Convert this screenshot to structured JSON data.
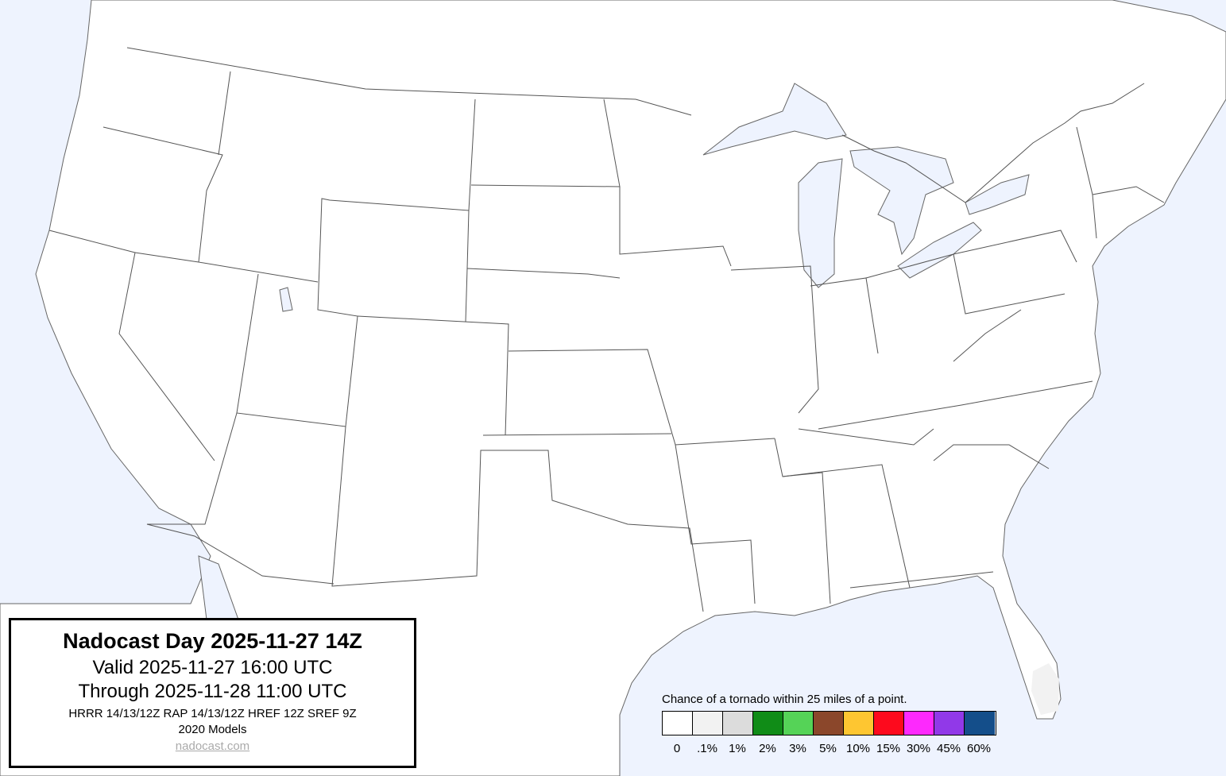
{
  "info": {
    "title": "Nadocast Day 2025-11-27 14Z",
    "valid": "Valid 2025-11-27 16:00 UTC",
    "through": "Through 2025-11-28 11:00 UTC",
    "models_line": "HRRR 14/13/12Z RAP 14/13/12Z HREF 12Z SREF 9Z",
    "models_year": "2020 Models",
    "link": "nadocast.com"
  },
  "legend": {
    "title": "Chance of a tornado within 25 miles of a point.",
    "items": [
      {
        "label": "0",
        "color": "#ffffff"
      },
      {
        "label": ".1%",
        "color": "#f2f2f2"
      },
      {
        "label": "1%",
        "color": "#dcdcdc"
      },
      {
        "label": "2%",
        "color": "#108c17"
      },
      {
        "label": "3%",
        "color": "#55d357"
      },
      {
        "label": "5%",
        "color": "#8b472b"
      },
      {
        "label": "10%",
        "color": "#fec631"
      },
      {
        "label": "15%",
        "color": "#fd0a1d"
      },
      {
        "label": "30%",
        "color": "#fd29fd"
      },
      {
        "label": "45%",
        "color": "#9139e8"
      },
      {
        "label": "60%",
        "color": "#144e8a"
      }
    ]
  },
  "colors": {
    "water": "#eef3fe",
    "land": "#ffffff",
    "border": "#555555"
  },
  "forecast_areas": [
    {
      "region": "South Florida",
      "category": ".1%"
    }
  ]
}
